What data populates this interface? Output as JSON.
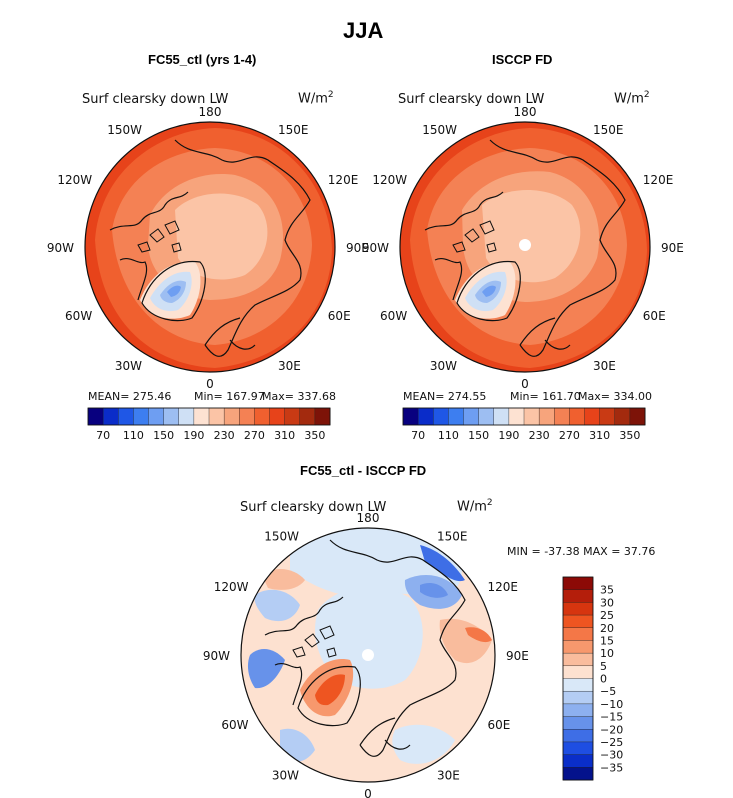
{
  "title": "JJA",
  "panels": [
    {
      "title": "FC55_ctl (yrs 1-4)",
      "variable": "Surf clearsky down LW",
      "units": "W/m",
      "units_sup": "2",
      "lon_labels": [
        "180",
        "150E",
        "120E",
        "90E",
        "60E",
        "30E",
        "0",
        "30W",
        "60W",
        "90W",
        "120W",
        "150W"
      ],
      "stats": {
        "mean_label": "MEAN=",
        "mean": "275.46",
        "min_label": "Min=",
        "min": "167.97",
        "max_label": "Max=",
        "max": "337.68"
      },
      "colorbar_ticks": [
        "70",
        "110",
        "150",
        "190",
        "230",
        "270",
        "310",
        "350"
      ]
    },
    {
      "title": "ISCCP FD",
      "variable": "Surf clearsky down LW",
      "units": "W/m",
      "units_sup": "2",
      "lon_labels": [
        "180",
        "150E",
        "120E",
        "90E",
        "60E",
        "30E",
        "0",
        "30W",
        "60W",
        "90W",
        "120W",
        "150W"
      ],
      "stats": {
        "mean_label": "MEAN=",
        "mean": "274.55",
        "min_label": "Min=",
        "min": "161.70",
        "max_label": "Max=",
        "max": "334.00"
      },
      "colorbar_ticks": [
        "70",
        "110",
        "150",
        "190",
        "230",
        "270",
        "310",
        "350"
      ]
    },
    {
      "title": "FC55_ctl - ISCCP FD",
      "variable": "Surf clearsky down LW",
      "units": "W/m",
      "units_sup": "2",
      "lon_labels": [
        "180",
        "150E",
        "120E",
        "90E",
        "60E",
        "30E",
        "0",
        "30W",
        "60W",
        "90W",
        "120W",
        "150W"
      ],
      "stats": {
        "min_label": "MIN =",
        "min": "-37.38",
        "max_label": "MAX =",
        "max": "37.76"
      },
      "colorbar_ticks": [
        "35",
        "30",
        "25",
        "20",
        "15",
        "10",
        "5",
        "0",
        "−5",
        "−10",
        "−15",
        "−20",
        "−25",
        "−30",
        "−35"
      ]
    }
  ],
  "colors": {
    "abs_scale": [
      "#08007f",
      "#0a2cc9",
      "#1f57e6",
      "#3d7ef0",
      "#6e9ef2",
      "#9dbef2",
      "#cfe0f5",
      "#fde2d2",
      "#fbc4a6",
      "#f7a47c",
      "#f48154",
      "#f0602f",
      "#e7431a",
      "#c93a14",
      "#a32a0e",
      "#7d1308"
    ],
    "diff_scale": [
      "#8c0a06",
      "#b41e0b",
      "#d6350f",
      "#ee5521",
      "#f47747",
      "#f7986d",
      "#f9bc9d",
      "#fde1d0",
      "#d9e8f8",
      "#b4cdf4",
      "#8db0ef",
      "#6792ea",
      "#3e6ee6",
      "#1e4ee2",
      "#0a2ec9",
      "#04128c"
    ],
    "coast": "#111111"
  }
}
